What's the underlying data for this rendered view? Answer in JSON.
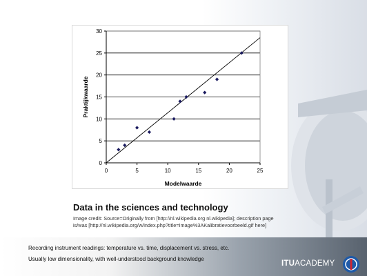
{
  "slide": {
    "title": "Data in the sciences and technology",
    "credit": "Image credit: Source=Originally from [http://nl.wikipedia.org nl.wikipedia]; description page is/was [http://nl.wikipedia.org/w/index.php?title=Image%3AKalibratievoorbeeld.gif here]",
    "bullets": [
      "Recording instrument readings: temperature vs. time, displacement vs. stress, etc.",
      "Usually low dimensionality, with well-understood background knowledge"
    ],
    "logo": {
      "bold": "ITU",
      "rest": "ACADEMY"
    }
  },
  "colors": {
    "points": "#1a1a5e",
    "axis": "#000000",
    "grid": "#000000",
    "logo_red": "#d22630",
    "logo_blue": "#1e5aa8"
  },
  "chart_data": {
    "type": "scatter",
    "xlabel": "Modelwaarde",
    "ylabel": "Praktijkwaarde",
    "xlim": [
      0,
      25
    ],
    "ylim": [
      0,
      30
    ],
    "xticks": [
      0,
      5,
      10,
      15,
      20,
      25
    ],
    "yticks": [
      0,
      5,
      10,
      15,
      20,
      25,
      30
    ],
    "grid": "horizontal",
    "reference_line": "y = x",
    "series": [
      {
        "points": [
          [
            2,
            3
          ],
          [
            3,
            4
          ],
          [
            5,
            8
          ],
          [
            7,
            7
          ],
          [
            11,
            10
          ],
          [
            12,
            14
          ],
          [
            13,
            15
          ],
          [
            16,
            16
          ],
          [
            18,
            19
          ],
          [
            22,
            25
          ]
        ]
      }
    ]
  }
}
